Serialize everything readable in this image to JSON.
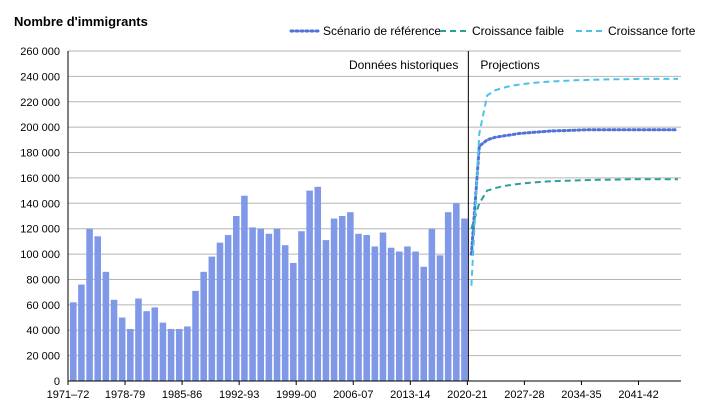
{
  "chart_data": {
    "type": "bar+line",
    "ylabel": "Nombre d'immigrants",
    "ylim": [
      0,
      260000
    ],
    "yticks": [
      0,
      20000,
      40000,
      60000,
      80000,
      100000,
      120000,
      140000,
      160000,
      180000,
      200000,
      220000,
      240000,
      260000
    ],
    "ytick_labels": [
      "0",
      "20 000",
      "40 000",
      "60 000",
      "80 000",
      "100 000",
      "120 000",
      "140 000",
      "160 000",
      "180 000",
      "200 000",
      "220 000",
      "240 000",
      "260 000"
    ],
    "xtick_labels": [
      "1971–72",
      "1978-79",
      "1985-86",
      "1992-93",
      "1999-00",
      "2006-07",
      "2013-14",
      "2020-21",
      "2027-28",
      "2034-35",
      "2041-42"
    ],
    "region_labels": {
      "historical": "Données historiques",
      "projections": "Projections"
    },
    "historical": {
      "name": "Données historiques",
      "color": "#7f98e8",
      "start": "1971-72",
      "values": [
        62000,
        76000,
        120000,
        114000,
        86000,
        64000,
        50000,
        41000,
        65000,
        55000,
        58000,
        46000,
        41000,
        41000,
        43000,
        71000,
        86000,
        98000,
        109000,
        115000,
        130000,
        146000,
        121000,
        120000,
        116000,
        120000,
        107000,
        93000,
        118000,
        150000,
        153000,
        111000,
        128000,
        130000,
        133000,
        116000,
        115000,
        106000,
        117000,
        105000,
        102000,
        106000,
        102000,
        90000,
        120000,
        99000,
        133000,
        140000,
        128000
      ]
    },
    "series": [
      {
        "name": "Scénario de référence",
        "color": "#4f73d6",
        "style": "dotted",
        "values": [
          100000,
          185000,
          190000,
          192000,
          193000,
          194000,
          195000,
          195500,
          196000,
          196500,
          197000,
          197200,
          197400,
          197600,
          197800,
          198000,
          198000,
          198000,
          198000,
          198000,
          198000,
          198000,
          198000,
          198000,
          198000,
          198000,
          198000
        ]
      },
      {
        "name": "Croissance faible",
        "color": "#2aa198",
        "style": "dashed",
        "values": [
          120000,
          140000,
          150000,
          152000,
          153500,
          154500,
          155300,
          156000,
          156500,
          157000,
          157300,
          157600,
          157800,
          158000,
          158200,
          158400,
          158500,
          158600,
          158700,
          158800,
          158900,
          159000,
          159000,
          159000,
          159000,
          159000,
          159000
        ]
      },
      {
        "name": "Croissance forte",
        "color": "#4cc3e6",
        "style": "dashed",
        "values": [
          75000,
          195000,
          225000,
          229000,
          231000,
          232500,
          233500,
          234300,
          235000,
          235500,
          236000,
          236300,
          236600,
          236900,
          237100,
          237300,
          237500,
          237600,
          237700,
          237800,
          237900,
          238000,
          238000,
          238000,
          238000,
          238000,
          238000
        ]
      }
    ],
    "grid": "horizontal"
  }
}
